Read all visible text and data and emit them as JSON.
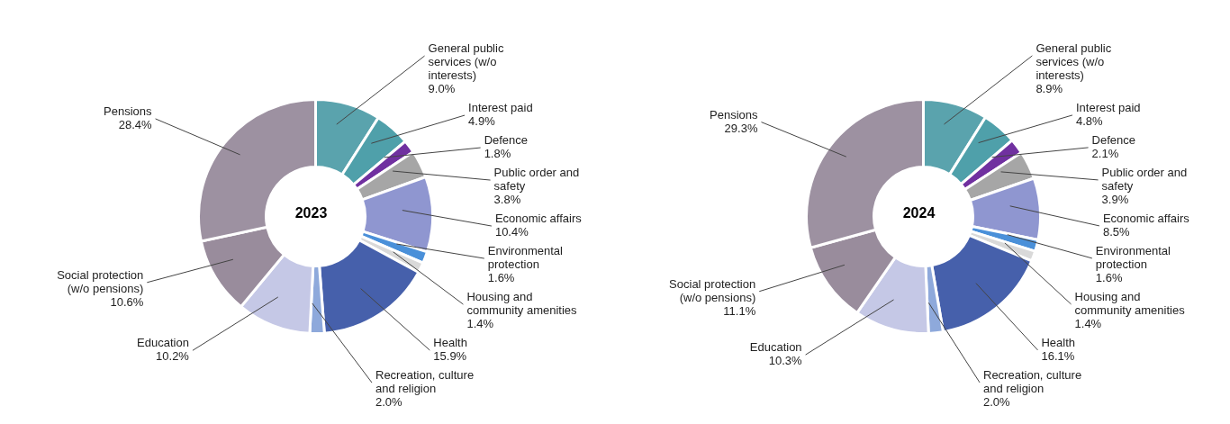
{
  "chart_data": [
    {
      "type": "donut",
      "title": "2023",
      "categories": [
        "General public services (w/o interests)",
        "Interest paid",
        "Defence",
        "Public order and safety",
        "Economic affairs",
        "Environmental protection",
        "Housing and community amenities",
        "Health",
        "Recreation, culture and religion",
        "Education",
        "Social protection (w/o pensions)",
        "Pensions"
      ],
      "values": [
        9.0,
        4.9,
        1.8,
        3.8,
        10.4,
        1.6,
        1.4,
        15.9,
        2.0,
        10.2,
        10.6,
        28.4
      ],
      "value_labels": [
        "9.0%",
        "4.9%",
        "1.8%",
        "3.8%",
        "10.4%",
        "1.6%",
        "1.4%",
        "15.9%",
        "2.0%",
        "10.2%",
        "10.6%",
        "28.4%"
      ],
      "colors": [
        "#5aa3ad",
        "#4fa0aa",
        "#7030a0",
        "#a6a6a6",
        "#8f96d0",
        "#4a90d9",
        "#d9d9d9",
        "#4660ab",
        "#8ea9db",
        "#c5c8e6",
        "#998c9c",
        "#9d91a1"
      ]
    },
    {
      "type": "donut",
      "title": "2024",
      "categories": [
        "General public services (w/o interests)",
        "Interest paid",
        "Defence",
        "Public order and safety",
        "Economic affairs",
        "Environmental protection",
        "Housing and community amenities",
        "Health",
        "Recreation, culture and religion",
        "Education",
        "Social protection (w/o pensions)",
        "Pensions"
      ],
      "values": [
        8.9,
        4.8,
        2.1,
        3.9,
        8.5,
        1.6,
        1.4,
        16.1,
        2.0,
        10.3,
        11.1,
        29.3
      ],
      "value_labels": [
        "8.9%",
        "4.8%",
        "2.1%",
        "3.9%",
        "8.5%",
        "1.6%",
        "1.4%",
        "16.1%",
        "2.0%",
        "10.3%",
        "11.1%",
        "29.3%"
      ],
      "colors": [
        "#5aa3ad",
        "#4fa0aa",
        "#7030a0",
        "#a6a6a6",
        "#8f96d0",
        "#4a90d9",
        "#d9d9d9",
        "#4660ab",
        "#8ea9db",
        "#c5c8e6",
        "#998c9c",
        "#9d91a1"
      ]
    }
  ]
}
